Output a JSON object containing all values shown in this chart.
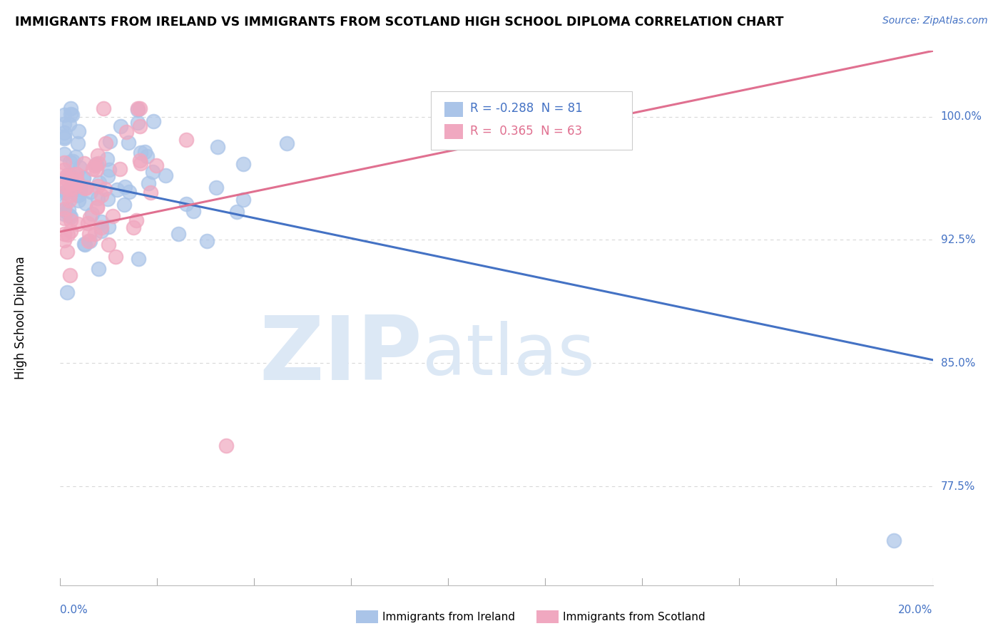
{
  "title": "IMMIGRANTS FROM IRELAND VS IMMIGRANTS FROM SCOTLAND HIGH SCHOOL DIPLOMA CORRELATION CHART",
  "source": "Source: ZipAtlas.com",
  "ylabel": "High School Diploma",
  "ytick_labels": [
    "77.5%",
    "85.0%",
    "92.5%",
    "100.0%"
  ],
  "ytick_values": [
    0.775,
    0.85,
    0.925,
    1.0
  ],
  "xlim": [
    0.0,
    0.2
  ],
  "ylim": [
    0.715,
    1.04
  ],
  "legend_ireland": "Immigrants from Ireland",
  "legend_scotland": "Immigrants from Scotland",
  "R_ireland": -0.288,
  "N_ireland": 81,
  "R_scotland": 0.365,
  "N_scotland": 63,
  "color_ireland": "#aac4e8",
  "color_scotland": "#f0a8c0",
  "color_ireland_line": "#4472c4",
  "color_scotland_line": "#e07090",
  "watermark_zip": "ZIP",
  "watermark_atlas": "atlas",
  "background_color": "#ffffff",
  "grid_color": "#d8d8d8",
  "ireland_line_y0": 0.963,
  "ireland_line_y1": 0.852,
  "scotland_line_y0": 0.93,
  "scotland_line_y1": 1.04
}
